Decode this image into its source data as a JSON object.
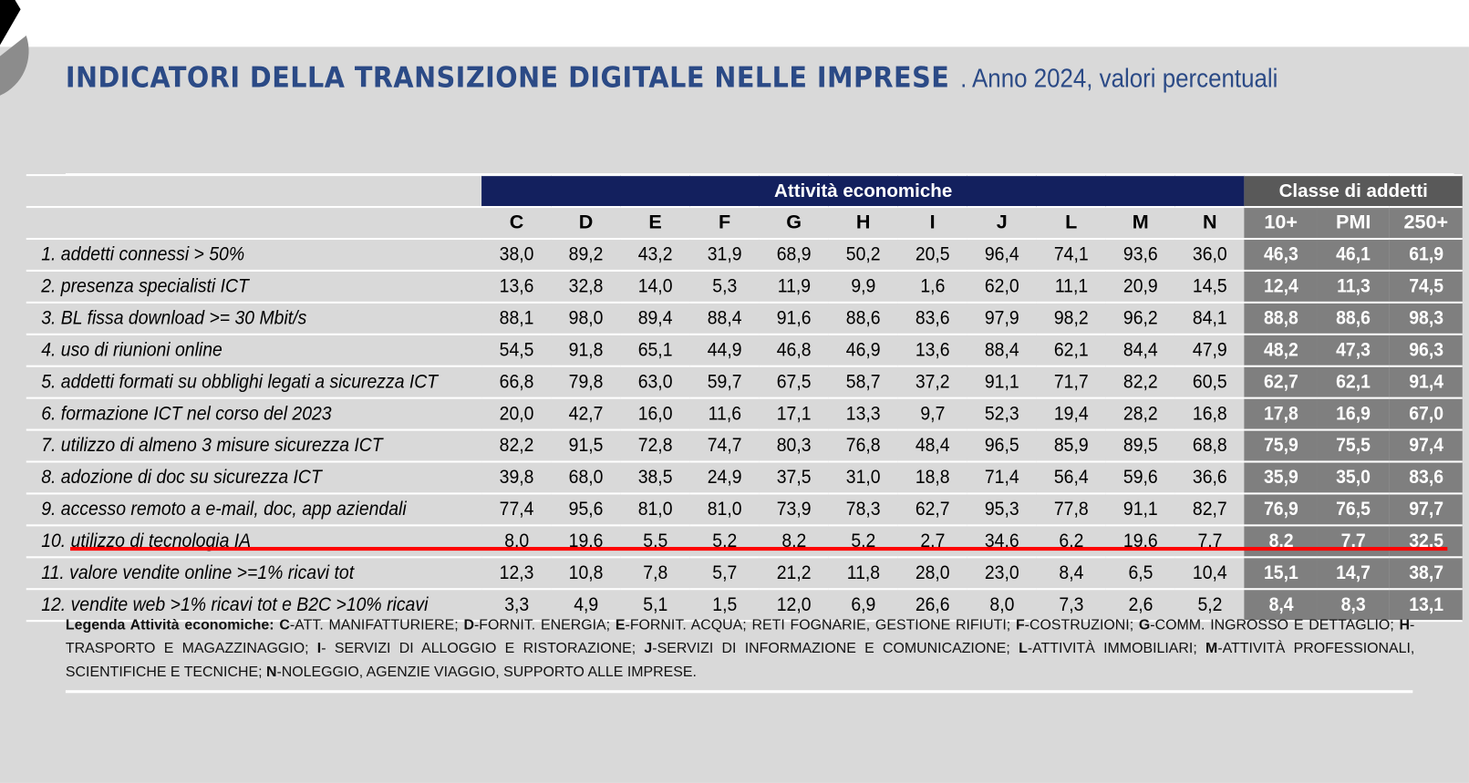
{
  "title": {
    "bold": "INDICATORI DELLA TRANSIZIONE DIGITALE NELLE IMPRESE",
    "rest": ". Anno 2024, valori percentuali"
  },
  "group_headers": {
    "activities": "Attività economiche",
    "size": "Classe di addetti"
  },
  "columns": [
    "C",
    "D",
    "E",
    "F",
    "G",
    "H",
    "I",
    "J",
    "L",
    "M",
    "N",
    "10+",
    "PMI",
    "250+"
  ],
  "rows": [
    {
      "label": "1. addetti connessi > 50%",
      "values": [
        "38,0",
        "89,2",
        "43,2",
        "31,9",
        "68,9",
        "50,2",
        "20,5",
        "96,4",
        "74,1",
        "93,6",
        "36,0",
        "46,3",
        "46,1",
        "61,9"
      ]
    },
    {
      "label": "2. presenza specialisti ICT",
      "values": [
        "13,6",
        "32,8",
        "14,0",
        "5,3",
        "11,9",
        "9,9",
        "1,6",
        "62,0",
        "11,1",
        "20,9",
        "14,5",
        "12,4",
        "11,3",
        "74,5"
      ]
    },
    {
      "label": "3. BL fissa download >= 30 Mbit/s",
      "values": [
        "88,1",
        "98,0",
        "89,4",
        "88,4",
        "91,6",
        "88,6",
        "83,6",
        "97,9",
        "98,2",
        "96,2",
        "84,1",
        "88,8",
        "88,6",
        "98,3"
      ]
    },
    {
      "label": "4. uso di riunioni online",
      "values": [
        "54,5",
        "91,8",
        "65,1",
        "44,9",
        "46,8",
        "46,9",
        "13,6",
        "88,4",
        "62,1",
        "84,4",
        "47,9",
        "48,2",
        "47,3",
        "96,3"
      ]
    },
    {
      "label": "5. addetti formati su obblighi legati a sicurezza ICT",
      "values": [
        "66,8",
        "79,8",
        "63,0",
        "59,7",
        "67,5",
        "58,7",
        "37,2",
        "91,1",
        "71,7",
        "82,2",
        "60,5",
        "62,7",
        "62,1",
        "91,4"
      ]
    },
    {
      "label": "6.  formazione ICT nel corso del 2023",
      "values": [
        "20,0",
        "42,7",
        "16,0",
        "11,6",
        "17,1",
        "13,3",
        "9,7",
        "52,3",
        "19,4",
        "28,2",
        "16,8",
        "17,8",
        "16,9",
        "67,0"
      ]
    },
    {
      "label": "7.  utilizzo di almeno 3 misure sicurezza ICT",
      "values": [
        "82,2",
        "91,5",
        "72,8",
        "74,7",
        "80,3",
        "76,8",
        "48,4",
        "96,5",
        "85,9",
        "89,5",
        "68,8",
        "75,9",
        "75,5",
        "97,4"
      ]
    },
    {
      "label": "8.  adozione di doc su sicurezza ICT",
      "values": [
        "39,8",
        "68,0",
        "38,5",
        "24,9",
        "37,5",
        "31,0",
        "18,8",
        "71,4",
        "56,4",
        "59,6",
        "36,6",
        "35,9",
        "35,0",
        "83,6"
      ]
    },
    {
      "label": "9.  accesso remoto a e-mail, doc, app aziendali",
      "values": [
        "77,4",
        "95,6",
        "81,0",
        "81,0",
        "73,9",
        "78,3",
        "62,7",
        "95,3",
        "77,8",
        "91,1",
        "82,7",
        "76,9",
        "76,5",
        "97,7"
      ]
    },
    {
      "label": "10. utilizzo di tecnologia IA",
      "values": [
        "8,0",
        "19,6",
        "5,5",
        "5,2",
        "8,2",
        "5,2",
        "2,7",
        "34,6",
        "6,2",
        "19,6",
        "7,7",
        "8,2",
        "7,7",
        "32,5"
      ]
    },
    {
      "label": "11. valore vendite online >=1% ricavi tot",
      "values": [
        "12,3",
        "10,8",
        "7,8",
        "5,7",
        "21,2",
        "11,8",
        "28,0",
        "23,0",
        "8,4",
        "6,5",
        "10,4",
        "15,1",
        "14,7",
        "38,7"
      ]
    },
    {
      "label": "12. vendite web >1% ricavi tot e  B2C >10% ricavi",
      "values": [
        "3,3",
        "4,9",
        "5,1",
        "1,5",
        "12,0",
        "6,9",
        "26,6",
        "8,0",
        "7,3",
        "2,6",
        "5,2",
        "8,4",
        "8,3",
        "13,1"
      ]
    }
  ],
  "legend": {
    "prefix": "Legenda Attività economiche: ",
    "items": [
      {
        "code": "C",
        "text": "-ATT. MANIFATTURIERE; "
      },
      {
        "code": "D",
        "text": "-FORNIT. ENERGIA; "
      },
      {
        "code": "E",
        "text": "-FORNIT. ACQUA; RETI FOGNARIE, GESTIONE RIFIUTI; "
      },
      {
        "code": "F",
        "text": "-COSTRUZIONI; "
      },
      {
        "code": "G",
        "text": "-COMM. INGROSSO E DETTAGLIO; "
      },
      {
        "code": "H",
        "text": "-TRASPORTO E MAGAZZINAGGIO; "
      },
      {
        "code": "I",
        "text": "- SERVIZI DI ALLOGGIO E RISTORAZIONE; "
      },
      {
        "code": "J",
        "text": "-SERVIZI DI INFORMAZIONE E COMUNICAZIONE; "
      },
      {
        "code": "L",
        "text": "-ATTIVITÀ IMMOBILIARI; "
      },
      {
        "code": "M",
        "text": "-ATTIVITÀ PROFESSIONALI, SCIENTIFICHE E TECNICHE; "
      },
      {
        "code": "N",
        "text": "-NOLEGGIO, AGENZIE VIAGGIO, SUPPORTO ALLE IMPRESE."
      }
    ]
  },
  "colors": {
    "title": "#2b4a86",
    "activities_header": "#13205e",
    "size_header": "#595959",
    "size_cells": "#7f7f7f",
    "highlight": "#ff0000",
    "background": "#d9d9d9"
  }
}
